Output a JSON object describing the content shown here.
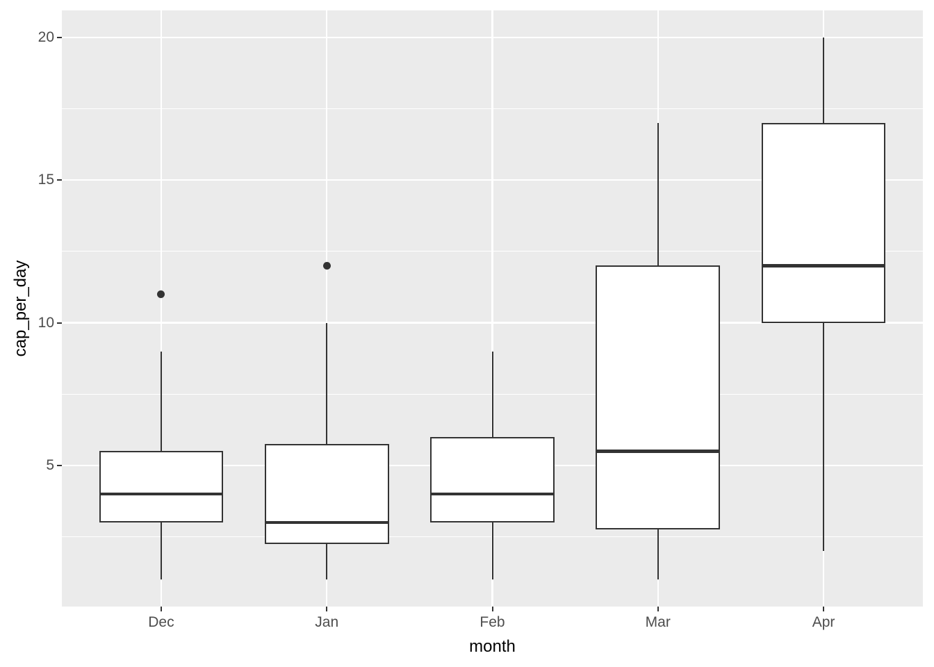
{
  "chart_data": {
    "type": "boxplot",
    "title": "",
    "xlabel": "month",
    "ylabel": "cap_per_day",
    "categories": [
      "Dec",
      "Jan",
      "Feb",
      "Mar",
      "Apr"
    ],
    "series": [
      {
        "category": "Dec",
        "min": 1,
        "q1": 3,
        "median": 4,
        "q3": 5.5,
        "max": 9,
        "outliers": [
          11
        ]
      },
      {
        "category": "Jan",
        "min": 1,
        "q1": 2.25,
        "median": 3,
        "q3": 5.75,
        "max": 10,
        "outliers": [
          12
        ]
      },
      {
        "category": "Feb",
        "min": 1,
        "q1": 3,
        "median": 4,
        "q3": 6,
        "max": 9,
        "outliers": []
      },
      {
        "category": "Mar",
        "min": 1,
        "q1": 2.75,
        "median": 5.5,
        "q3": 12,
        "max": 17,
        "outliers": []
      },
      {
        "category": "Apr",
        "min": 2,
        "q1": 10,
        "median": 12,
        "q3": 17,
        "max": 20,
        "outliers": []
      }
    ],
    "y_ticks": [
      5,
      10,
      15,
      20
    ],
    "y_minor_gridlines": [
      2.5,
      7.5,
      12.5,
      17.5
    ],
    "ylim": [
      0.05,
      20.95
    ],
    "grid": true,
    "legend": false,
    "box_width_ratio": 0.75,
    "style": {
      "figure_bg": "#FFFFFF",
      "panel_bg": "#EBEBEB",
      "grid_color": "#FFFFFF",
      "box_stroke": "#333333",
      "box_fill": "#FFFFFF",
      "median_color": "#333333",
      "outlier_color": "#333333",
      "whisker_color": "#333333",
      "tick_color": "#333333",
      "axis_text_color": "#4D4D4D",
      "axis_title_color": "#000000"
    }
  }
}
